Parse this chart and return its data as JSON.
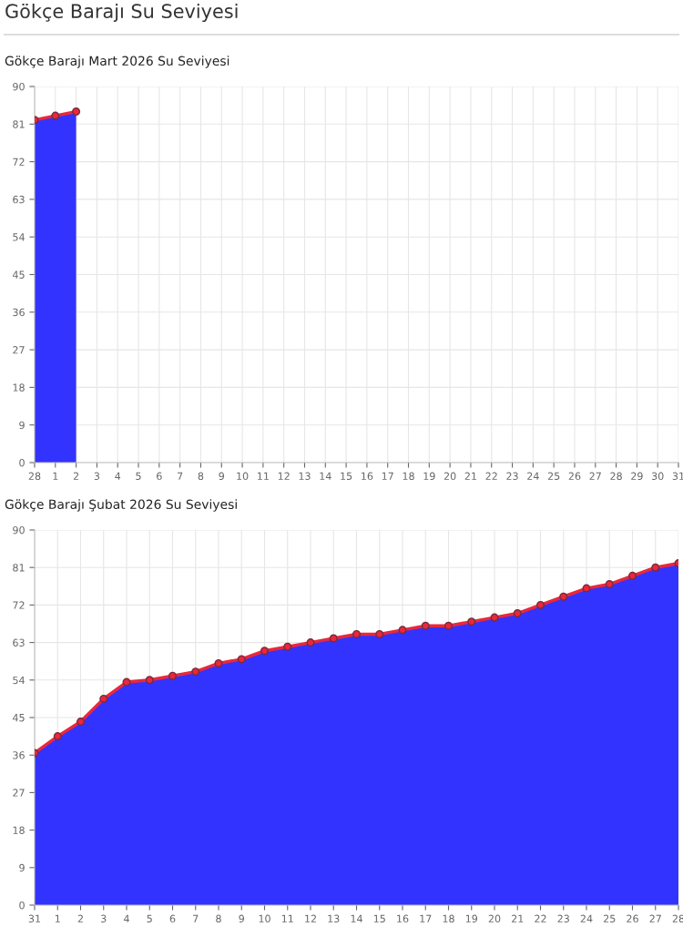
{
  "chart_data": [
    {
      "type": "area",
      "title": "Gökçe Barajı Su Seviyesi",
      "subtitle": "Gökçe Barajı Mart 2026 Su Seviyesi",
      "categories": [
        "28",
        "1",
        "2",
        "3",
        "4",
        "5",
        "6",
        "7",
        "8",
        "9",
        "10",
        "11",
        "12",
        "13",
        "14",
        "15",
        "16",
        "17",
        "18",
        "19",
        "20",
        "21",
        "22",
        "23",
        "24",
        "25",
        "26",
        "27",
        "28",
        "29",
        "30",
        "31"
      ],
      "series": [
        {
          "color": "#3333ff",
          "values": [
            82,
            83,
            84,
            null,
            null,
            null,
            null,
            null,
            null,
            null,
            null,
            null,
            null,
            null,
            null,
            null,
            null,
            null,
            null,
            null,
            null,
            null,
            null,
            null,
            null,
            null,
            null,
            null,
            null,
            null,
            null,
            null
          ]
        },
        {
          "type": "line",
          "marker": "circle",
          "color": "#e8283c",
          "values": [
            82,
            83,
            84,
            null,
            null,
            null,
            null,
            null,
            null,
            null,
            null,
            null,
            null,
            null,
            null,
            null,
            null,
            null,
            null,
            null,
            null,
            null,
            null,
            null,
            null,
            null,
            null,
            null,
            null,
            null,
            null,
            null
          ]
        }
      ],
      "ylim": [
        0,
        90
      ],
      "yticks": [
        0,
        9,
        18,
        27,
        36,
        45,
        54,
        63,
        72,
        81,
        90
      ],
      "grid": true
    },
    {
      "type": "area",
      "title": "Gökçe Barajı Şubat 2026 Su Seviyesi",
      "categories": [
        "31",
        "1",
        "2",
        "3",
        "4",
        "5",
        "6",
        "7",
        "8",
        "9",
        "10",
        "11",
        "12",
        "13",
        "14",
        "15",
        "16",
        "17",
        "18",
        "19",
        "20",
        "21",
        "22",
        "23",
        "24",
        "25",
        "26",
        "27",
        "28"
      ],
      "series": [
        {
          "color": "#3333ff",
          "values": [
            36.5,
            40.5,
            44,
            49.5,
            53.5,
            54,
            55,
            56,
            58,
            59,
            61,
            62,
            63,
            64,
            65,
            65,
            66,
            67,
            67,
            68,
            69,
            70,
            72,
            74,
            76,
            77,
            79,
            81,
            82
          ]
        },
        {
          "type": "line",
          "marker": "circle",
          "color": "#e8283c",
          "values": [
            36.5,
            40.5,
            44,
            49.5,
            53.5,
            54,
            55,
            56,
            58,
            59,
            61,
            62,
            63,
            64,
            65,
            65,
            66,
            67,
            67,
            68,
            69,
            70,
            72,
            74,
            76,
            77,
            79,
            81,
            82
          ]
        }
      ],
      "ylim": [
        0,
        90
      ],
      "yticks": [
        0,
        9,
        18,
        27,
        36,
        45,
        54,
        63,
        72,
        81,
        90
      ],
      "grid": true
    }
  ]
}
